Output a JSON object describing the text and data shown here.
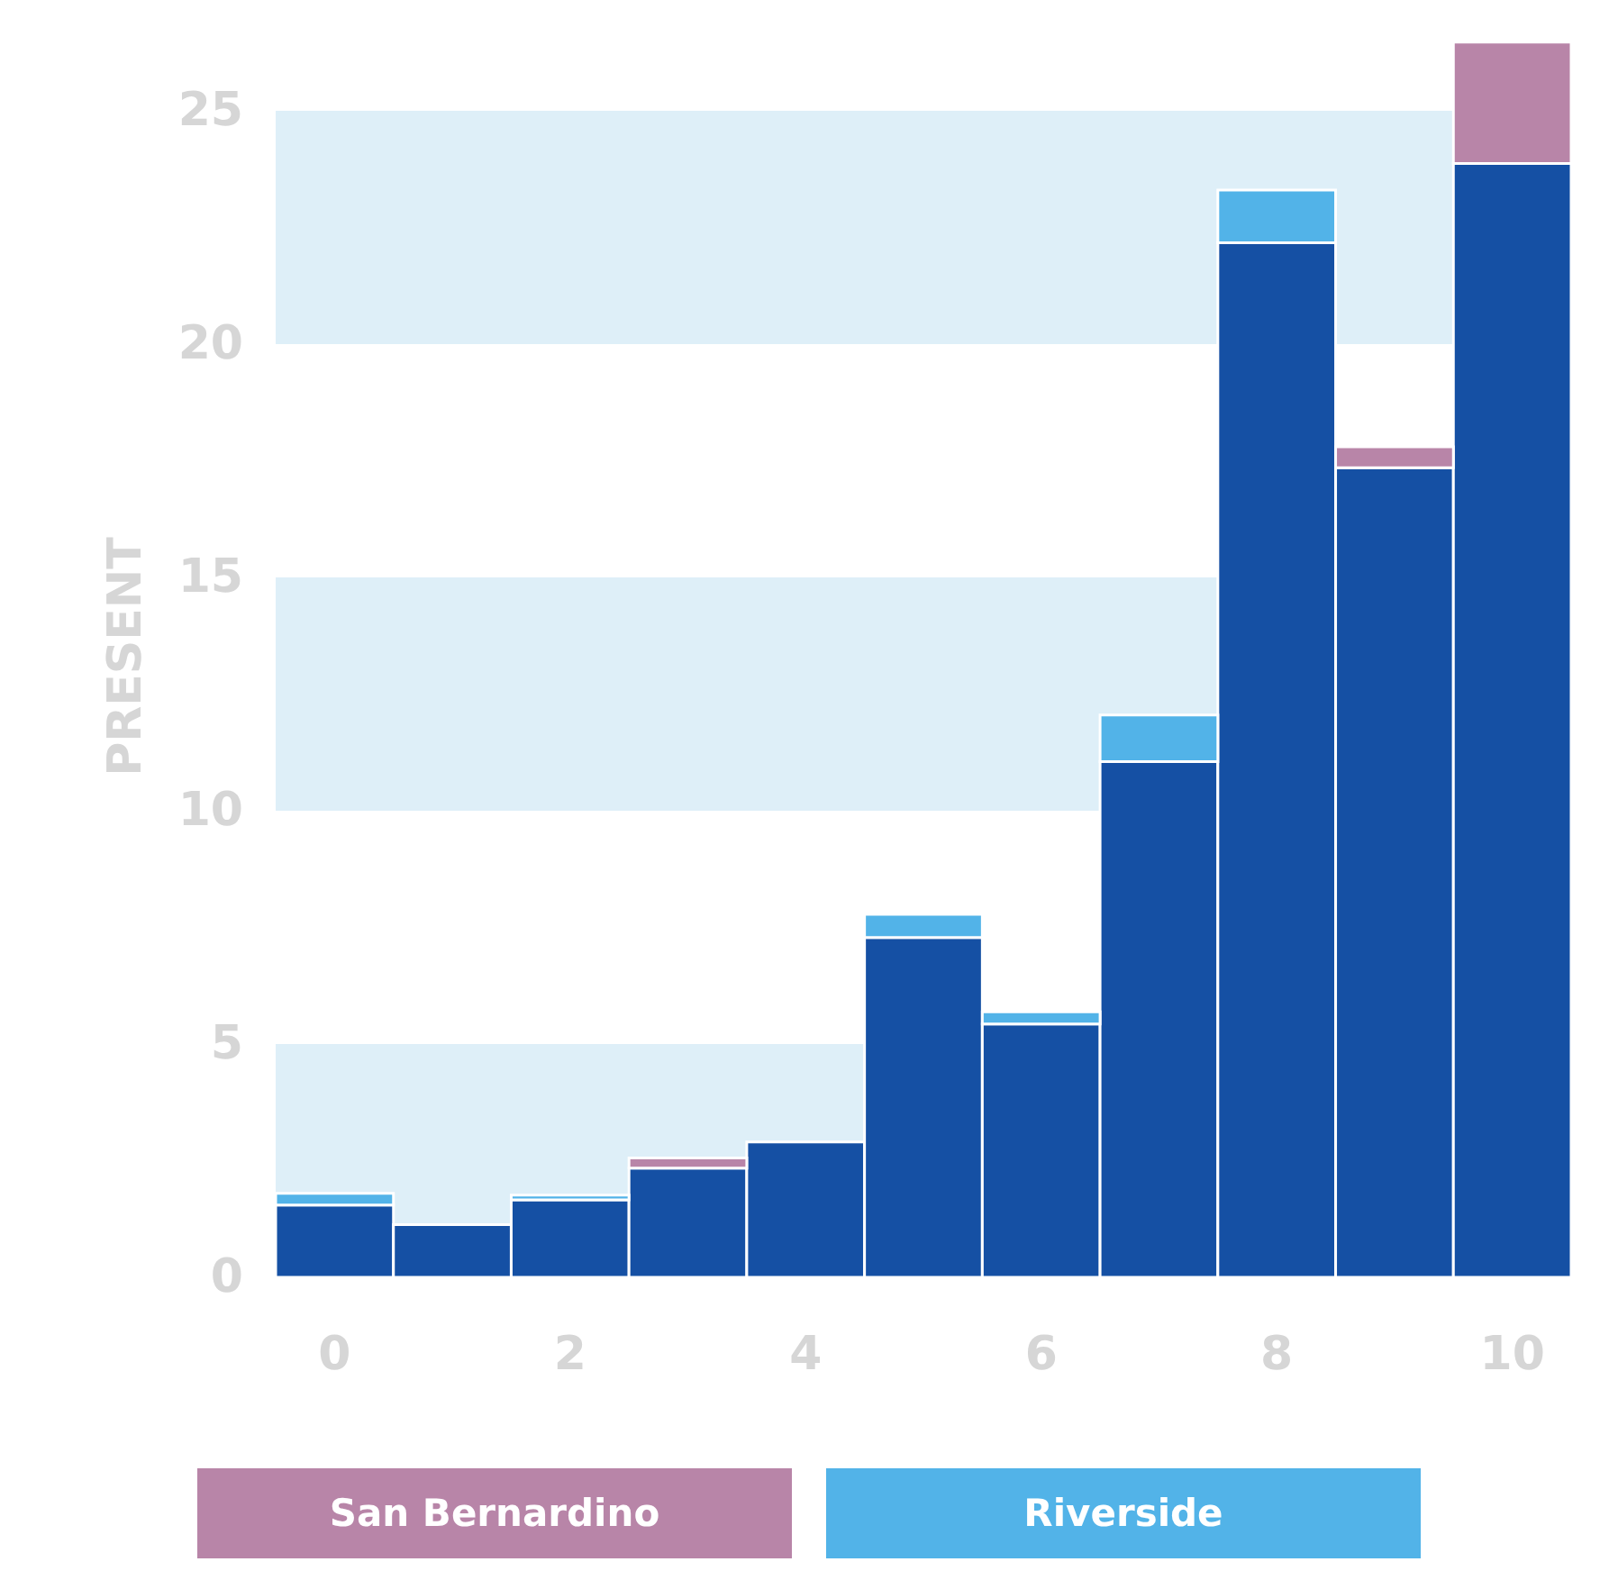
{
  "chart_data": {
    "type": "bar",
    "stacked": true,
    "ylabel": "PRESENT",
    "x": [
      0,
      1,
      2,
      3,
      4,
      5,
      6,
      7,
      8,
      9,
      10
    ],
    "series": [
      {
        "color": "#1550a4",
        "values": [
          1.55,
          1.13,
          1.66,
          2.34,
          2.9,
          7.28,
          5.43,
          11.05,
          22.17,
          17.35,
          23.87
        ]
      },
      {
        "name": "Riverside",
        "color": "#52b3e8",
        "values": [
          0.25,
          null,
          0.1,
          null,
          null,
          0.5,
          0.26,
          1.0,
          1.13,
          null,
          null
        ]
      },
      {
        "name": "San Bernardino",
        "color": "#b885a8",
        "values": [
          null,
          null,
          null,
          0.22,
          null,
          null,
          null,
          null,
          null,
          0.45,
          2.6
        ]
      }
    ],
    "xlim": [
      -0.5,
      10.5
    ],
    "xticks": [
      0,
      2,
      4,
      6,
      8,
      10
    ],
    "ylim": [
      0,
      26.6
    ],
    "yticks": [
      0,
      5,
      10,
      15,
      20,
      25
    ],
    "bands": [
      {
        "axis": "y",
        "from": 0,
        "to": 5,
        "color": "#deeff8"
      },
      {
        "axis": "y",
        "from": 10,
        "to": 15,
        "color": "#deeff8"
      },
      {
        "axis": "y",
        "from": 20,
        "to": 25,
        "color": "#deeff8"
      }
    ],
    "legend": "bottom",
    "grid": false
  }
}
